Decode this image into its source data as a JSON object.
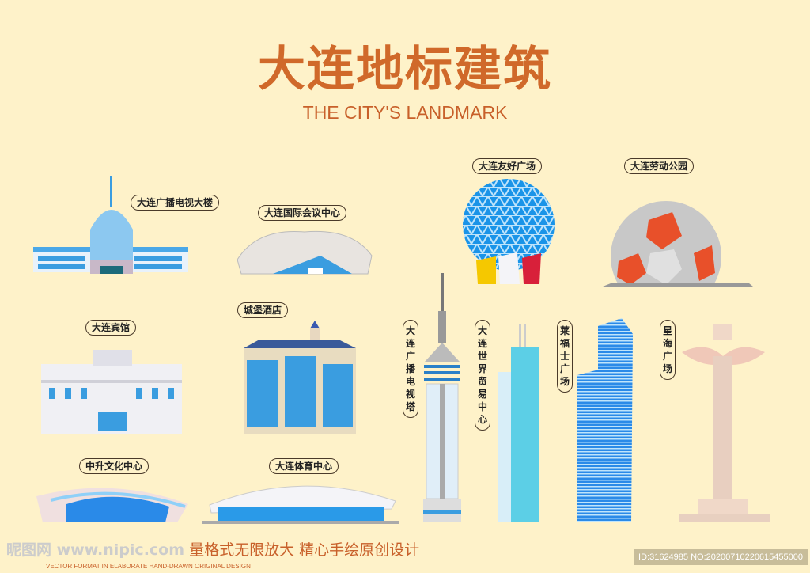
{
  "title": "大连地标建筑",
  "subtitle": "THE CITY'S LANDMARK",
  "landmarks": [
    {
      "name": "大连广播电视大楼"
    },
    {
      "name": "大连国际会议中心"
    },
    {
      "name": "大连友好广场"
    },
    {
      "name": "大连劳动公园"
    },
    {
      "name": "大连宾馆"
    },
    {
      "name": "城堡酒店"
    },
    {
      "name": "大连广播电视塔"
    },
    {
      "name": "大连世界贸易中心"
    },
    {
      "name": "莱福士广场"
    },
    {
      "name": "星海广场"
    },
    {
      "name": "中升文化中心"
    },
    {
      "name": "大连体育中心"
    }
  ],
  "footer": {
    "watermark": "昵图网 www.nipic.com",
    "slogan": "量格式无限放大  精心手绘原创设计",
    "slogan_en": "VECTOR FORMAT IN ELABORATE HAND-DRAWN ORIGINAL DESIGN",
    "id": "ID:31624985 NO:20200710220615455000"
  },
  "colors": {
    "background": "#fef2c9",
    "title": "#d0692a",
    "blue": "#3a9de0",
    "orange": "#e8502a"
  }
}
